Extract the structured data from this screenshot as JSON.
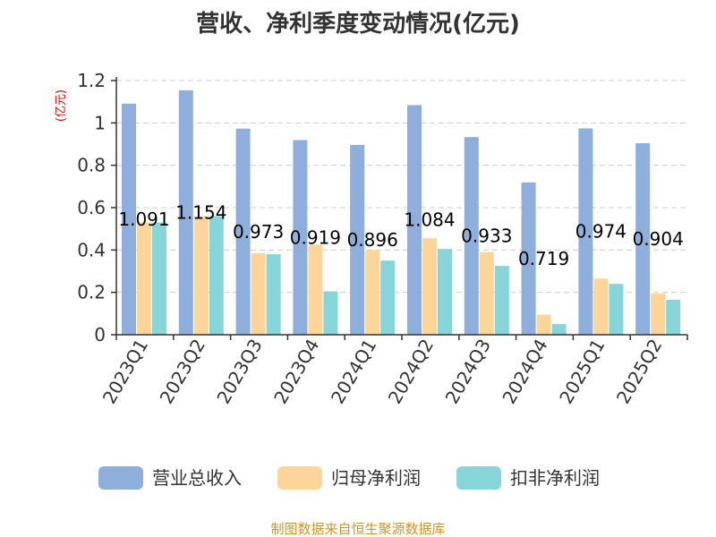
{
  "chart_data": {
    "type": "bar",
    "title": "营收、净利季度变动情况(亿元)",
    "unit_label": "(亿元)",
    "categories": [
      "2023Q1",
      "2023Q2",
      "2023Q3",
      "2023Q4",
      "2024Q1",
      "2024Q2",
      "2024Q3",
      "2024Q4",
      "2025Q1",
      "2025Q2"
    ],
    "series": [
      {
        "name": "营业总收入",
        "color": "#8eaedb",
        "values": [
          1.091,
          1.154,
          0.973,
          0.919,
          0.896,
          1.084,
          0.933,
          0.719,
          0.974,
          0.904
        ],
        "data_labels": [
          "1.091",
          "1.154",
          "0.973",
          "0.919",
          "0.896",
          "1.084",
          "0.933",
          "0.719",
          "0.974",
          "0.904"
        ]
      },
      {
        "name": "归母净利润",
        "color": "#fdd598",
        "values": [
          0.53,
          0.56,
          0.385,
          0.425,
          0.4,
          0.455,
          0.39,
          0.095,
          0.265,
          0.195
        ]
      },
      {
        "name": "扣非净利润",
        "color": "#87d4d9",
        "values": [
          0.53,
          0.56,
          0.38,
          0.205,
          0.35,
          0.405,
          0.325,
          0.05,
          0.24,
          0.165
        ]
      }
    ],
    "ylim": [
      0,
      1.2
    ],
    "yticks": [
      "0",
      "0.2",
      "0.4",
      "0.6",
      "0.8",
      "1",
      "1.2"
    ],
    "grid": true,
    "legend_position": "bottom",
    "source": "制图数据来自恒生聚源数据库"
  }
}
